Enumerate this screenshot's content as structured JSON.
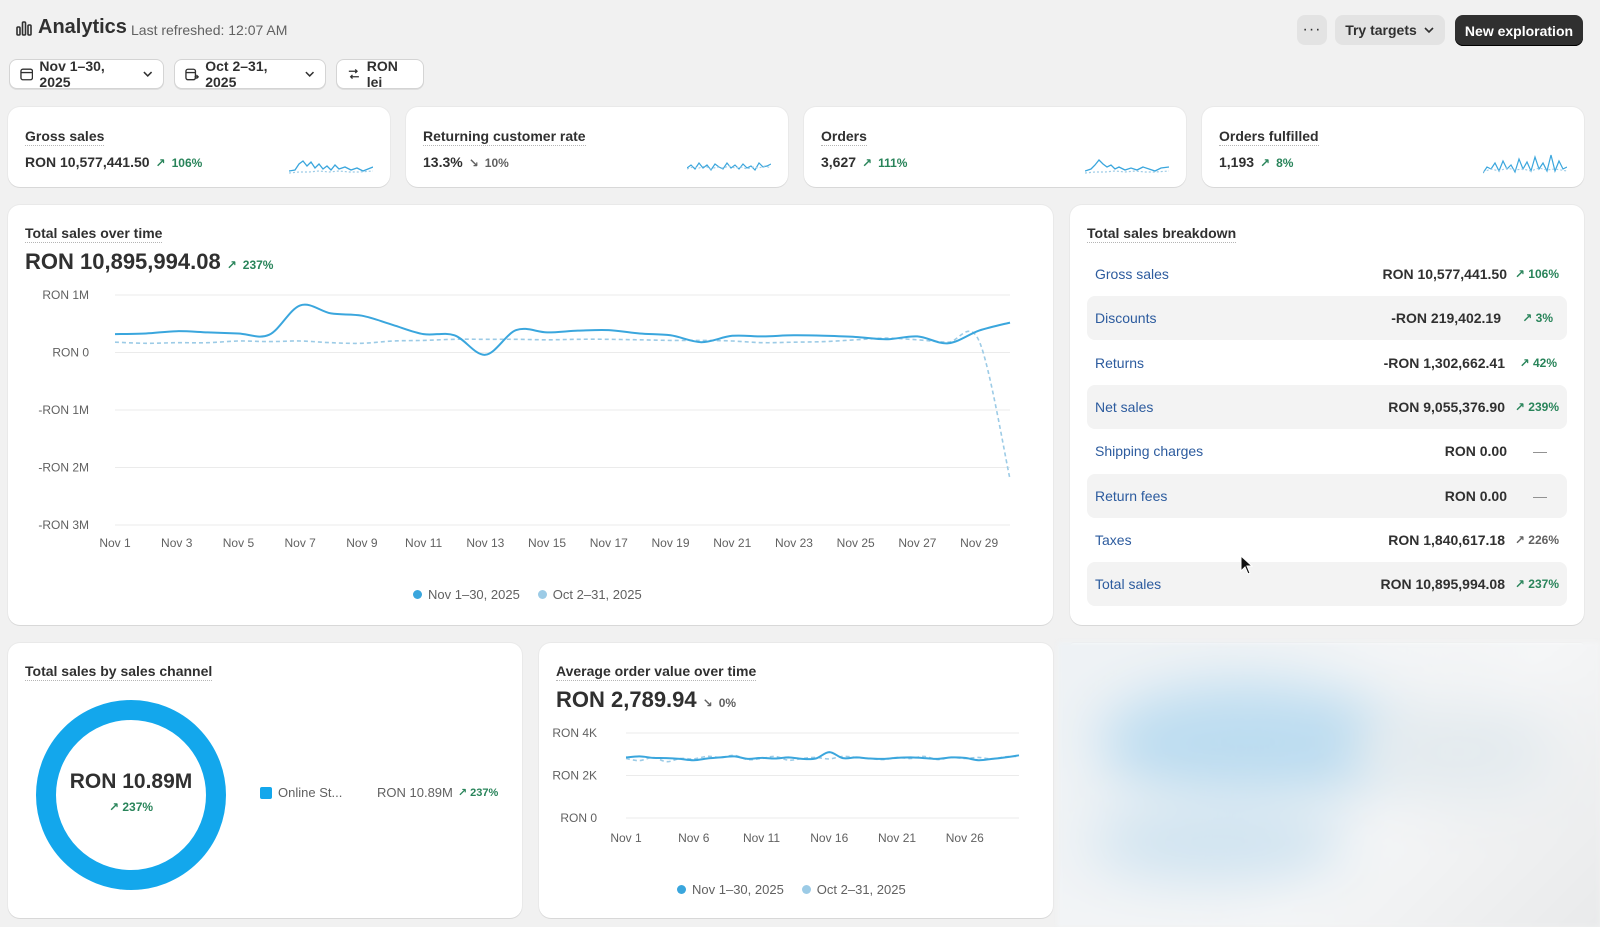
{
  "header": {
    "title": "Analytics",
    "refreshed": "Last refreshed: 12:07 AM",
    "more_label": "···",
    "targets_label": "Try targets",
    "new_exploration_label": "New exploration"
  },
  "filters": {
    "date_range": "Nov 1–30, 2025",
    "compare_range": "Oct 2–31, 2025",
    "currency": "RON lei"
  },
  "kpis": [
    {
      "title": "Gross sales",
      "value": "RON 10,577,441.50",
      "trend": "106%",
      "direction": "up"
    },
    {
      "title": "Returning customer rate",
      "value": "13.3%",
      "trend": "10%",
      "direction": "down"
    },
    {
      "title": "Orders",
      "value": "3,627",
      "trend": "111%",
      "direction": "up"
    },
    {
      "title": "Orders fulfilled",
      "value": "1,193",
      "trend": "8%",
      "direction": "up"
    }
  ],
  "total_sales": {
    "title": "Total sales over time",
    "value": "RON 10,895,994.08",
    "trend": "237%"
  },
  "breakdown": {
    "title": "Total sales breakdown",
    "rows": [
      {
        "label": "Gross sales",
        "value": "RON 10,577,441.50",
        "trend": "106%"
      },
      {
        "label": "Discounts",
        "value": "-RON 219,402.19",
        "trend": "3%"
      },
      {
        "label": "Returns",
        "value": "-RON 1,302,662.41",
        "trend": "42%"
      },
      {
        "label": "Net sales",
        "value": "RON 9,055,376.90",
        "trend": "239%"
      },
      {
        "label": "Shipping charges",
        "value": "RON 0.00",
        "trend": "—"
      },
      {
        "label": "Return fees",
        "value": "RON 0.00",
        "trend": "—"
      },
      {
        "label": "Taxes",
        "value": "RON 1,840,617.18",
        "trend": "226%"
      },
      {
        "label": "Total sales",
        "value": "RON 10,895,994.08",
        "trend": "237%"
      }
    ]
  },
  "channel": {
    "title": "Total sales by sales channel",
    "center_value": "RON 10.89M",
    "center_trend": "237%",
    "legend_name": "Online St...",
    "legend_value": "RON 10.89M",
    "legend_trend": "237%"
  },
  "aov": {
    "title": "Average order value over time",
    "value": "RON 2,789.94",
    "trend": "0%"
  },
  "legend": {
    "current": "Nov 1–30, 2025",
    "previous": "Oct 2–31, 2025"
  },
  "colors": {
    "primary_series": "#3aa6dd",
    "comparison_series": "#9ccbe6",
    "donut": "#13a7ec",
    "positive": "#29845a",
    "link": "#2c5b9e"
  },
  "chart_data": [
    {
      "type": "line",
      "title": "Total sales over time",
      "x": [
        "Nov 1",
        "Nov 2",
        "Nov 3",
        "Nov 4",
        "Nov 5",
        "Nov 6",
        "Nov 7",
        "Nov 8",
        "Nov 9",
        "Nov 10",
        "Nov 11",
        "Nov 12",
        "Nov 13",
        "Nov 14",
        "Nov 15",
        "Nov 16",
        "Nov 17",
        "Nov 18",
        "Nov 19",
        "Nov 20",
        "Nov 21",
        "Nov 22",
        "Nov 23",
        "Nov 24",
        "Nov 25",
        "Nov 26",
        "Nov 27",
        "Nov 28",
        "Nov 29",
        "Nov 30"
      ],
      "x_ticks": [
        "Nov 1",
        "Nov 3",
        "Nov 5",
        "Nov 7",
        "Nov 9",
        "Nov 11",
        "Nov 13",
        "Nov 15",
        "Nov 17",
        "Nov 19",
        "Nov 21",
        "Nov 23",
        "Nov 25",
        "Nov 27",
        "Nov 29"
      ],
      "y_ticks": [
        "RON 1M",
        "RON 0",
        "-RON 1M",
        "-RON 2M",
        "-RON 3M"
      ],
      "ylim": [
        -3000000,
        1000000
      ],
      "series": [
        {
          "name": "Nov 1–30, 2025",
          "values": [
            320000,
            330000,
            370000,
            350000,
            330000,
            310000,
            820000,
            680000,
            640000,
            480000,
            320000,
            300000,
            -40000,
            390000,
            350000,
            380000,
            390000,
            330000,
            300000,
            180000,
            290000,
            280000,
            300000,
            290000,
            270000,
            230000,
            280000,
            160000,
            380000,
            520000
          ]
        },
        {
          "name": "Oct 2–31, 2025",
          "values": [
            180000,
            160000,
            170000,
            170000,
            200000,
            190000,
            200000,
            170000,
            160000,
            200000,
            210000,
            230000,
            230000,
            230000,
            220000,
            230000,
            230000,
            220000,
            210000,
            210000,
            200000,
            170000,
            180000,
            190000,
            220000,
            250000,
            220000,
            180000,
            200000,
            -2200000
          ]
        }
      ]
    },
    {
      "type": "pie",
      "title": "Total sales by sales channel",
      "categories": [
        "Online St..."
      ],
      "values": [
        10890000
      ]
    },
    {
      "type": "line",
      "title": "Average order value over time",
      "x_ticks": [
        "Nov 1",
        "Nov 6",
        "Nov 11",
        "Nov 16",
        "Nov 21",
        "Nov 26"
      ],
      "y_ticks": [
        "RON 4K",
        "RON 2K",
        "RON 0"
      ],
      "ylim": [
        0,
        4000
      ],
      "series": [
        {
          "name": "Nov 1–30, 2025",
          "values": [
            2850,
            2900,
            2830,
            2820,
            2780,
            2720,
            2800,
            2850,
            2900,
            2780,
            2830,
            2800,
            2850,
            2780,
            2800,
            3100,
            2820,
            2850,
            2800,
            2780,
            2830,
            2850,
            2820,
            2780,
            2850,
            2830,
            2720,
            2780,
            2850,
            2950
          ]
        },
        {
          "name": "Oct 2–31, 2025",
          "values": [
            2800,
            2700,
            2850,
            2650,
            2800,
            2780,
            2900,
            2850,
            2950,
            2750,
            2800,
            2900,
            2720,
            2800,
            2850,
            2780,
            2900,
            2850,
            2800,
            2750,
            2850,
            2800,
            2900,
            2750,
            2850,
            2800,
            2850,
            2780,
            2880,
            2900
          ]
        }
      ]
    }
  ]
}
